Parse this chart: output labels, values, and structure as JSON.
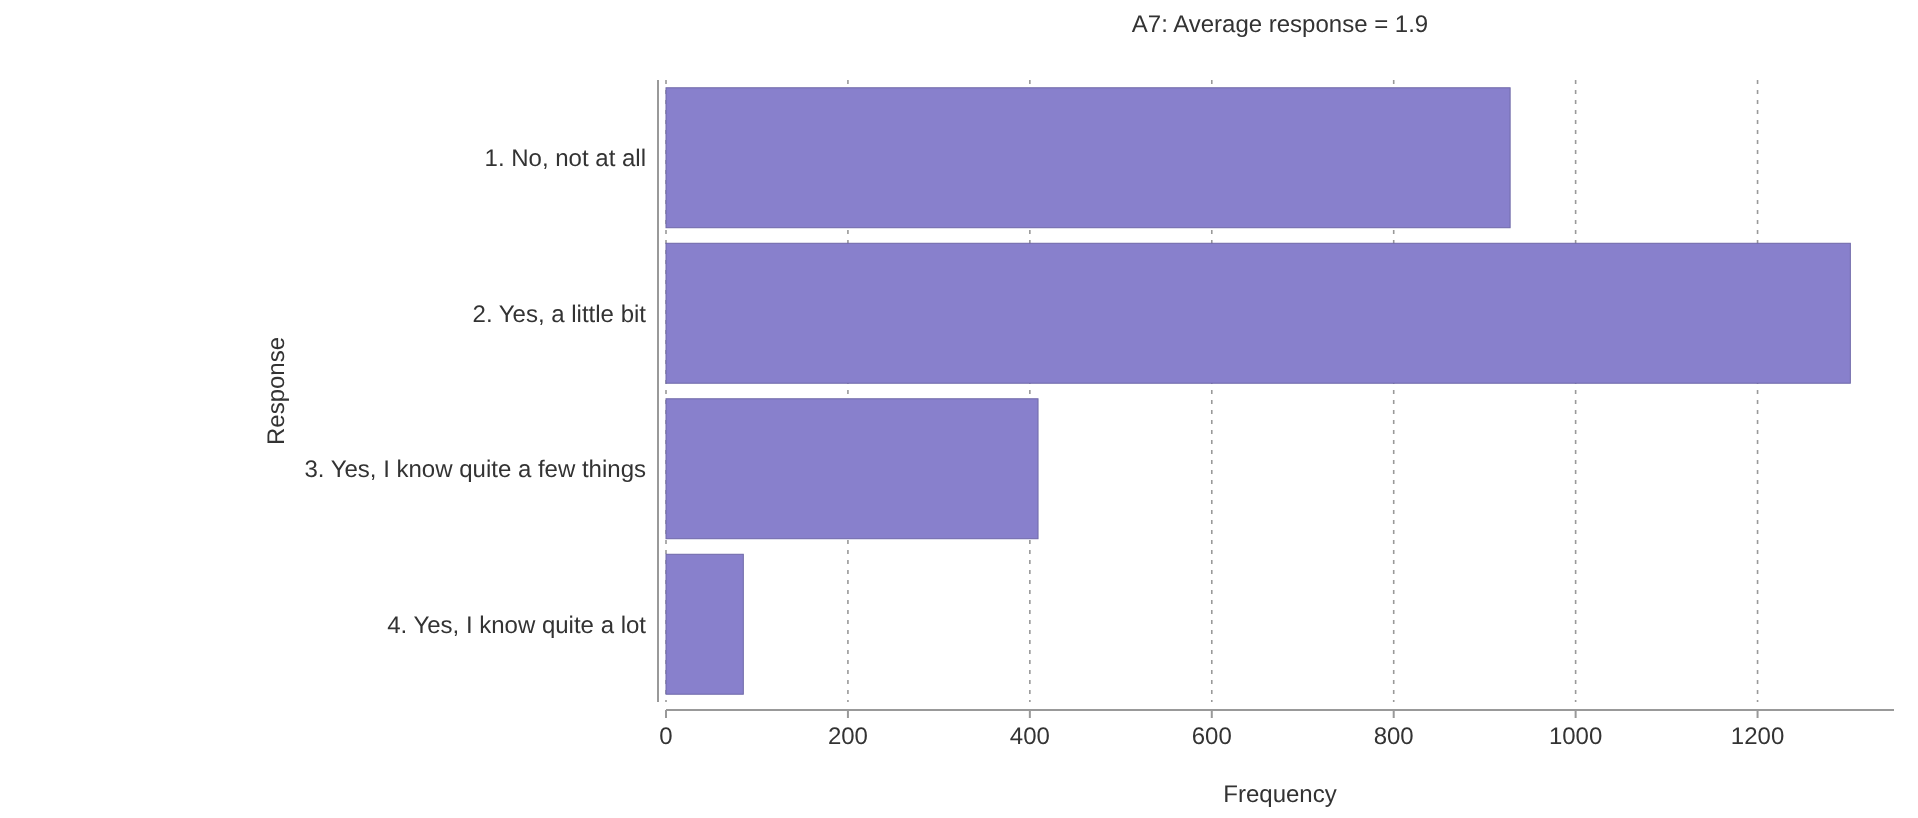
{
  "chart_data": {
    "type": "bar",
    "orientation": "horizontal",
    "title": "A7: Average response = 1.9",
    "xlabel": "Frequency",
    "ylabel": "Response",
    "categories": [
      "1. No, not at all",
      "2. Yes, a little bit",
      "3. Yes, I know quite a few things",
      "4. Yes, I know quite a lot"
    ],
    "values": [
      928,
      1302,
      409,
      85
    ],
    "color": "#8880cc",
    "xlim": [
      0,
      1350
    ],
    "xticks": [
      0,
      200,
      400,
      600,
      800,
      1000,
      1200
    ],
    "grid": "x"
  }
}
